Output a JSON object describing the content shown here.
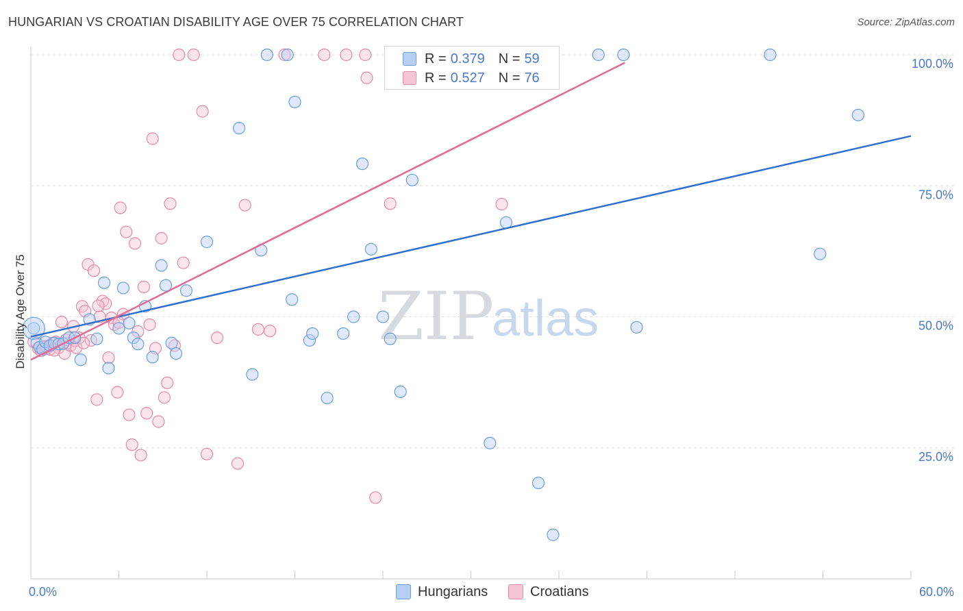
{
  "title": "HUNGARIAN VS CROATIAN DISABILITY AGE OVER 75 CORRELATION CHART",
  "source": "Source: ZipAtlas.com",
  "watermark": {
    "zip": "ZIP",
    "atlas": "atlas"
  },
  "chart_data": {
    "type": "scatter",
    "xlabel": "",
    "ylabel": "Disability Age Over 75",
    "xlim": [
      0,
      60
    ],
    "ylim": [
      0,
      100
    ],
    "x_tick_labels": [
      "0.0%",
      "60.0%"
    ],
    "y_ticks": [
      25,
      50,
      75,
      100
    ],
    "y_tick_labels": [
      "25.0%",
      "50.0%",
      "75.0%",
      "100.0%"
    ],
    "grid": true,
    "legend_position": "top-center",
    "series": [
      {
        "name": "Hungarians",
        "color": "#6a9ee0",
        "fill": "#b7cff2",
        "R": "0.379",
        "N": "59",
        "trend": {
          "x": [
            0,
            60
          ],
          "y": [
            46.2,
            84.5
          ]
        },
        "points": [
          [
            0.2,
            47.8
          ],
          [
            0.4,
            45.0
          ],
          [
            0.6,
            44.2
          ],
          [
            0.8,
            43.8
          ],
          [
            1.0,
            45.2
          ],
          [
            1.3,
            44.5
          ],
          [
            1.6,
            45.0
          ],
          [
            1.9,
            44.8
          ],
          [
            2.2,
            44.9
          ],
          [
            2.6,
            46.0
          ],
          [
            3.0,
            46.0
          ],
          [
            3.4,
            41.8
          ],
          [
            4.0,
            49.5
          ],
          [
            4.5,
            45.8
          ],
          [
            5.0,
            56.5
          ],
          [
            5.3,
            40.2
          ],
          [
            6.0,
            47.8
          ],
          [
            6.3,
            55.5
          ],
          [
            6.7,
            48.8
          ],
          [
            7.0,
            46.0
          ],
          [
            7.3,
            44.8
          ],
          [
            7.8,
            52.0
          ],
          [
            8.3,
            42.3
          ],
          [
            8.9,
            59.8
          ],
          [
            9.2,
            56.0
          ],
          [
            9.6,
            45.0
          ],
          [
            9.9,
            43.0
          ],
          [
            10.6,
            55.0
          ],
          [
            12.0,
            64.3
          ],
          [
            14.2,
            86.0
          ],
          [
            15.1,
            39.0
          ],
          [
            15.7,
            62.7
          ],
          [
            16.1,
            100.0
          ],
          [
            17.5,
            100.0
          ],
          [
            17.8,
            53.3
          ],
          [
            18.0,
            91.0
          ],
          [
            19.0,
            45.5
          ],
          [
            19.2,
            46.8
          ],
          [
            20.2,
            34.5
          ],
          [
            21.3,
            46.8
          ],
          [
            22.0,
            50.0
          ],
          [
            22.6,
            79.2
          ],
          [
            23.2,
            62.9
          ],
          [
            24.0,
            50.0
          ],
          [
            24.5,
            45.8
          ],
          [
            25.2,
            35.7
          ],
          [
            26.0,
            76.1
          ],
          [
            28.0,
            100.0
          ],
          [
            31.3,
            25.9
          ],
          [
            32.4,
            68.0
          ],
          [
            34.6,
            18.3
          ],
          [
            35.6,
            8.4
          ],
          [
            38.7,
            100.0
          ],
          [
            40.4,
            100.0
          ],
          [
            41.3,
            48.0
          ],
          [
            50.4,
            100.0
          ],
          [
            53.8,
            62.0
          ],
          [
            56.4,
            88.5
          ],
          [
            29.5,
            100.0
          ]
        ]
      },
      {
        "name": "Croatians",
        "color": "#e48aa8",
        "fill": "#f6c6d6",
        "R": "0.527",
        "N": "76",
        "trend": {
          "x": [
            0,
            40.5
          ],
          "y": [
            41.8,
            98.5
          ]
        },
        "points": [
          [
            0.2,
            45.2
          ],
          [
            0.5,
            44.0
          ],
          [
            0.7,
            43.5
          ],
          [
            0.9,
            44.2
          ],
          [
            1.1,
            44.0
          ],
          [
            1.3,
            43.8
          ],
          [
            1.5,
            45.0
          ],
          [
            1.7,
            45.2
          ],
          [
            1.9,
            44.1
          ],
          [
            2.1,
            49.0
          ],
          [
            2.3,
            43.0
          ],
          [
            2.5,
            45.0
          ],
          [
            2.7,
            44.5
          ],
          [
            2.9,
            48.2
          ],
          [
            3.0,
            45.4
          ],
          [
            3.1,
            44.1
          ],
          [
            3.3,
            46.0
          ],
          [
            3.5,
            52.0
          ],
          [
            3.7,
            51.1
          ],
          [
            3.9,
            60.0
          ],
          [
            4.1,
            45.5
          ],
          [
            4.3,
            58.8
          ],
          [
            4.5,
            34.2
          ],
          [
            4.7,
            50.0
          ],
          [
            4.9,
            53.0
          ],
          [
            5.1,
            52.5
          ],
          [
            5.3,
            42.2
          ],
          [
            5.5,
            49.8
          ],
          [
            5.7,
            48.5
          ],
          [
            5.9,
            35.6
          ],
          [
            6.1,
            70.8
          ],
          [
            6.3,
            50.5
          ],
          [
            6.5,
            66.2
          ],
          [
            6.7,
            31.3
          ],
          [
            6.9,
            25.6
          ],
          [
            7.1,
            64.0
          ],
          [
            7.3,
            47.2
          ],
          [
            7.5,
            23.6
          ],
          [
            7.7,
            55.7
          ],
          [
            7.9,
            31.6
          ],
          [
            8.1,
            48.5
          ],
          [
            8.3,
            84.0
          ],
          [
            8.5,
            44.0
          ],
          [
            8.7,
            30.0
          ],
          [
            8.9,
            65.0
          ],
          [
            9.1,
            34.6
          ],
          [
            9.3,
            37.4
          ],
          [
            9.5,
            71.6
          ],
          [
            9.8,
            44.5
          ],
          [
            10.1,
            100.0
          ],
          [
            10.4,
            60.3
          ],
          [
            11.1,
            100.0
          ],
          [
            11.7,
            89.2
          ],
          [
            12.0,
            23.8
          ],
          [
            12.7,
            46.0
          ],
          [
            14.1,
            22.0
          ],
          [
            14.6,
            71.3
          ],
          [
            15.5,
            47.6
          ],
          [
            16.3,
            47.3
          ],
          [
            17.3,
            100.0
          ],
          [
            20.0,
            100.0
          ],
          [
            21.5,
            100.0
          ],
          [
            22.8,
            100.0
          ],
          [
            22.9,
            95.6
          ],
          [
            23.5,
            15.5
          ],
          [
            24.5,
            71.6
          ],
          [
            25.3,
            100.0
          ],
          [
            27.0,
            100.0
          ],
          [
            29.0,
            100.0
          ],
          [
            32.1,
            71.5
          ],
          [
            1.0,
            44.4
          ],
          [
            1.6,
            43.6
          ],
          [
            2.4,
            45.6
          ],
          [
            3.6,
            45.0
          ],
          [
            4.6,
            52.1
          ],
          [
            6.0,
            48.9
          ]
        ]
      }
    ]
  }
}
